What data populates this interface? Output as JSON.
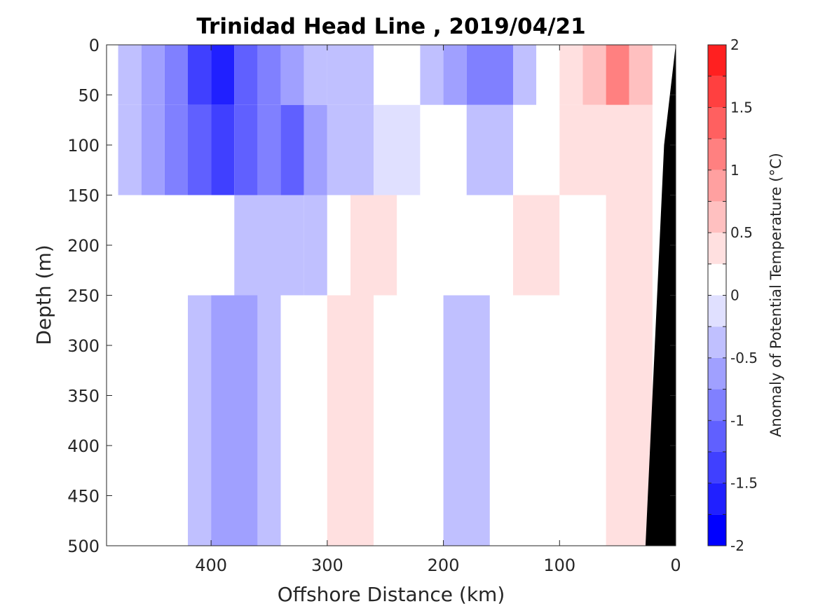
{
  "chart_data": {
    "type": "heatmap",
    "title": "Trinidad Head Line , 2019/04/21",
    "xlabel": "Offshore Distance (km)",
    "ylabel": "Depth (m)",
    "colorbar_label": "Anomaly of Potential Temperature (°C)",
    "xlim": [
      490,
      0
    ],
    "ylim": [
      0,
      500
    ],
    "x_ticks": [
      400,
      300,
      200,
      100,
      0
    ],
    "y_ticks": [
      0,
      50,
      100,
      150,
      200,
      250,
      300,
      350,
      400,
      450,
      500
    ],
    "colorbar": {
      "range": [
        -2,
        2
      ],
      "levels": [
        -2,
        -1.75,
        -1.5,
        -1.25,
        -1,
        -0.75,
        -0.5,
        -0.25,
        0,
        0.25,
        0.5,
        0.75,
        1,
        1.25,
        1.5,
        1.75,
        2
      ],
      "tick_values": [
        -2,
        -1.5,
        -1,
        -0.5,
        0,
        0.5,
        1,
        1.5,
        2
      ],
      "tick_labels": [
        "-2",
        "-1.5",
        "-1",
        "-0.5",
        "0",
        "0.5",
        "1",
        "1.5",
        "2"
      ],
      "colors": [
        "#0000ff",
        "#2020ff",
        "#4040ff",
        "#6060ff",
        "#8080ff",
        "#a0a0ff",
        "#c0c0ff",
        "#e0e0ff",
        "#ffffff",
        "#ffe0e0",
        "#ffc0c0",
        "#ffa0a0",
        "#ff8080",
        "#ff6060",
        "#ff4040",
        "#ff2020"
      ]
    },
    "bathymetry_color": "#000000",
    "cells": [
      {
        "x": [
          480,
          460
        ],
        "z": [
          0,
          60
        ],
        "v": -0.5
      },
      {
        "x": [
          460,
          440
        ],
        "z": [
          0,
          60
        ],
        "v": -0.75
      },
      {
        "x": [
          440,
          420
        ],
        "z": [
          0,
          60
        ],
        "v": -1.0
      },
      {
        "x": [
          420,
          400
        ],
        "z": [
          0,
          60
        ],
        "v": -1.5
      },
      {
        "x": [
          400,
          380
        ],
        "z": [
          0,
          60
        ],
        "v": -1.6
      },
      {
        "x": [
          380,
          360
        ],
        "z": [
          0,
          60
        ],
        "v": -1.25
      },
      {
        "x": [
          360,
          340
        ],
        "z": [
          0,
          60
        ],
        "v": -0.9
      },
      {
        "x": [
          340,
          320
        ],
        "z": [
          0,
          60
        ],
        "v": -0.75
      },
      {
        "x": [
          320,
          300
        ],
        "z": [
          0,
          60
        ],
        "v": -0.4
      },
      {
        "x": [
          300,
          280
        ],
        "z": [
          0,
          60
        ],
        "v": -0.3
      },
      {
        "x": [
          280,
          260
        ],
        "z": [
          0,
          60
        ],
        "v": -0.5
      },
      {
        "x": [
          260,
          220
        ],
        "z": [
          0,
          60
        ],
        "v": 0.0
      },
      {
        "x": [
          220,
          200
        ],
        "z": [
          0,
          60
        ],
        "v": -0.4
      },
      {
        "x": [
          200,
          180
        ],
        "z": [
          0,
          60
        ],
        "v": -0.6
      },
      {
        "x": [
          180,
          140
        ],
        "z": [
          0,
          60
        ],
        "v": -0.9
      },
      {
        "x": [
          140,
          120
        ],
        "z": [
          0,
          60
        ],
        "v": -0.4
      },
      {
        "x": [
          120,
          100
        ],
        "z": [
          0,
          60
        ],
        "v": 0.0
      },
      {
        "x": [
          100,
          80
        ],
        "z": [
          0,
          60
        ],
        "v": 0.3
      },
      {
        "x": [
          80,
          60
        ],
        "z": [
          0,
          60
        ],
        "v": 0.6
      },
      {
        "x": [
          60,
          40
        ],
        "z": [
          0,
          60
        ],
        "v": 1.1
      },
      {
        "x": [
          40,
          20
        ],
        "z": [
          0,
          60
        ],
        "v": 0.7
      },
      {
        "x": [
          480,
          460
        ],
        "z": [
          60,
          150
        ],
        "v": -0.3
      },
      {
        "x": [
          460,
          440
        ],
        "z": [
          60,
          150
        ],
        "v": -0.6
      },
      {
        "x": [
          440,
          420
        ],
        "z": [
          60,
          150
        ],
        "v": -1.0
      },
      {
        "x": [
          420,
          400
        ],
        "z": [
          60,
          150
        ],
        "v": -1.25
      },
      {
        "x": [
          400,
          380
        ],
        "z": [
          60,
          150
        ],
        "v": -1.4
      },
      {
        "x": [
          380,
          360
        ],
        "z": [
          60,
          150
        ],
        "v": -1.1
      },
      {
        "x": [
          360,
          340
        ],
        "z": [
          60,
          150
        ],
        "v": -0.9
      },
      {
        "x": [
          340,
          320
        ],
        "z": [
          60,
          150
        ],
        "v": -1.1
      },
      {
        "x": [
          320,
          300
        ],
        "z": [
          60,
          150
        ],
        "v": -0.75
      },
      {
        "x": [
          300,
          280
        ],
        "z": [
          60,
          150
        ],
        "v": -0.4
      },
      {
        "x": [
          280,
          260
        ],
        "z": [
          60,
          150
        ],
        "v": -0.3
      },
      {
        "x": [
          260,
          220
        ],
        "z": [
          60,
          150
        ],
        "v": -0.1
      },
      {
        "x": [
          220,
          180
        ],
        "z": [
          60,
          150
        ],
        "v": 0.0
      },
      {
        "x": [
          180,
          140
        ],
        "z": [
          60,
          150
        ],
        "v": -0.3
      },
      {
        "x": [
          140,
          100
        ],
        "z": [
          60,
          150
        ],
        "v": 0.0
      },
      {
        "x": [
          100,
          20
        ],
        "z": [
          60,
          150
        ],
        "v": 0.3
      },
      {
        "x": [
          480,
          380
        ],
        "z": [
          150,
          250
        ],
        "v": 0.0
      },
      {
        "x": [
          380,
          320
        ],
        "z": [
          150,
          250
        ],
        "v": -0.3
      },
      {
        "x": [
          320,
          300
        ],
        "z": [
          150,
          250
        ],
        "v": -0.4
      },
      {
        "x": [
          300,
          280
        ],
        "z": [
          150,
          250
        ],
        "v": 0.0
      },
      {
        "x": [
          280,
          240
        ],
        "z": [
          150,
          250
        ],
        "v": 0.3
      },
      {
        "x": [
          240,
          180
        ],
        "z": [
          150,
          250
        ],
        "v": 0.0
      },
      {
        "x": [
          180,
          140
        ],
        "z": [
          150,
          250
        ],
        "v": 0.0
      },
      {
        "x": [
          140,
          100
        ],
        "z": [
          150,
          250
        ],
        "v": 0.3
      },
      {
        "x": [
          100,
          60
        ],
        "z": [
          150,
          250
        ],
        "v": 0.0
      },
      {
        "x": [
          60,
          20
        ],
        "z": [
          150,
          250
        ],
        "v": 0.3
      },
      {
        "x": [
          480,
          420
        ],
        "z": [
          250,
          500
        ],
        "v": 0.0
      },
      {
        "x": [
          420,
          400
        ],
        "z": [
          250,
          500
        ],
        "v": -0.3
      },
      {
        "x": [
          400,
          360
        ],
        "z": [
          250,
          500
        ],
        "v": -0.6
      },
      {
        "x": [
          360,
          340
        ],
        "z": [
          250,
          500
        ],
        "v": -0.3
      },
      {
        "x": [
          340,
          300
        ],
        "z": [
          250,
          500
        ],
        "v": 0.0
      },
      {
        "x": [
          300,
          260
        ],
        "z": [
          250,
          500
        ],
        "v": 0.3
      },
      {
        "x": [
          260,
          200
        ],
        "z": [
          250,
          500
        ],
        "v": 0.0
      },
      {
        "x": [
          200,
          160
        ],
        "z": [
          250,
          500
        ],
        "v": -0.3
      },
      {
        "x": [
          160,
          100
        ],
        "z": [
          250,
          500
        ],
        "v": 0.0
      },
      {
        "x": [
          100,
          60
        ],
        "z": [
          250,
          500
        ],
        "v": 0.0
      },
      {
        "x": [
          60,
          20
        ],
        "z": [
          250,
          500
        ],
        "v": 0.3
      }
    ],
    "bathymetry": [
      [
        0,
        0
      ],
      [
        0,
        500
      ],
      [
        26,
        500
      ],
      [
        10,
        100
      ]
    ]
  }
}
